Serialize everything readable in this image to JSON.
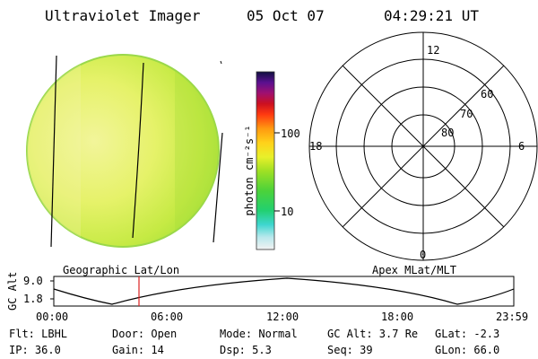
{
  "header": {
    "title": "Ultraviolet Imager",
    "date": "05 Oct 07",
    "time": "04:29:21 UT"
  },
  "colorbar": {
    "unit_label": "photon cm⁻²s⁻¹",
    "ticks": [
      "100",
      "10"
    ]
  },
  "polar_plot": {
    "mlt_labels": {
      "top": "12",
      "left": "18",
      "right": "6",
      "bottom": "0"
    },
    "lat_labels": [
      "60",
      "70",
      "80"
    ]
  },
  "altitude_panel": {
    "axis_label": "GC Alt",
    "y_ticks": [
      "9.0",
      "1.8"
    ],
    "left_title": "Geographic Lat/Lon",
    "right_title": "Apex MLat/MLT",
    "x_ticks": [
      "00:00",
      "06:00",
      "12:00",
      "18:00",
      "23:59"
    ],
    "colors": {
      "marker": "#dd2222"
    }
  },
  "status": {
    "row1": {
      "filter": "Flt: LBHL",
      "door": "Door: Open",
      "mode": "Mode: Normal",
      "gc_alt": "GC Alt: 3.7 Re",
      "glat": "GLat:  -2.3"
    },
    "row2": {
      "ip": "IP: 36.0",
      "gain": "Gain: 14",
      "dsp": "Dsp:    5.3",
      "seq": "Seq: 39",
      "glon": "GLon:  66.0"
    }
  }
}
